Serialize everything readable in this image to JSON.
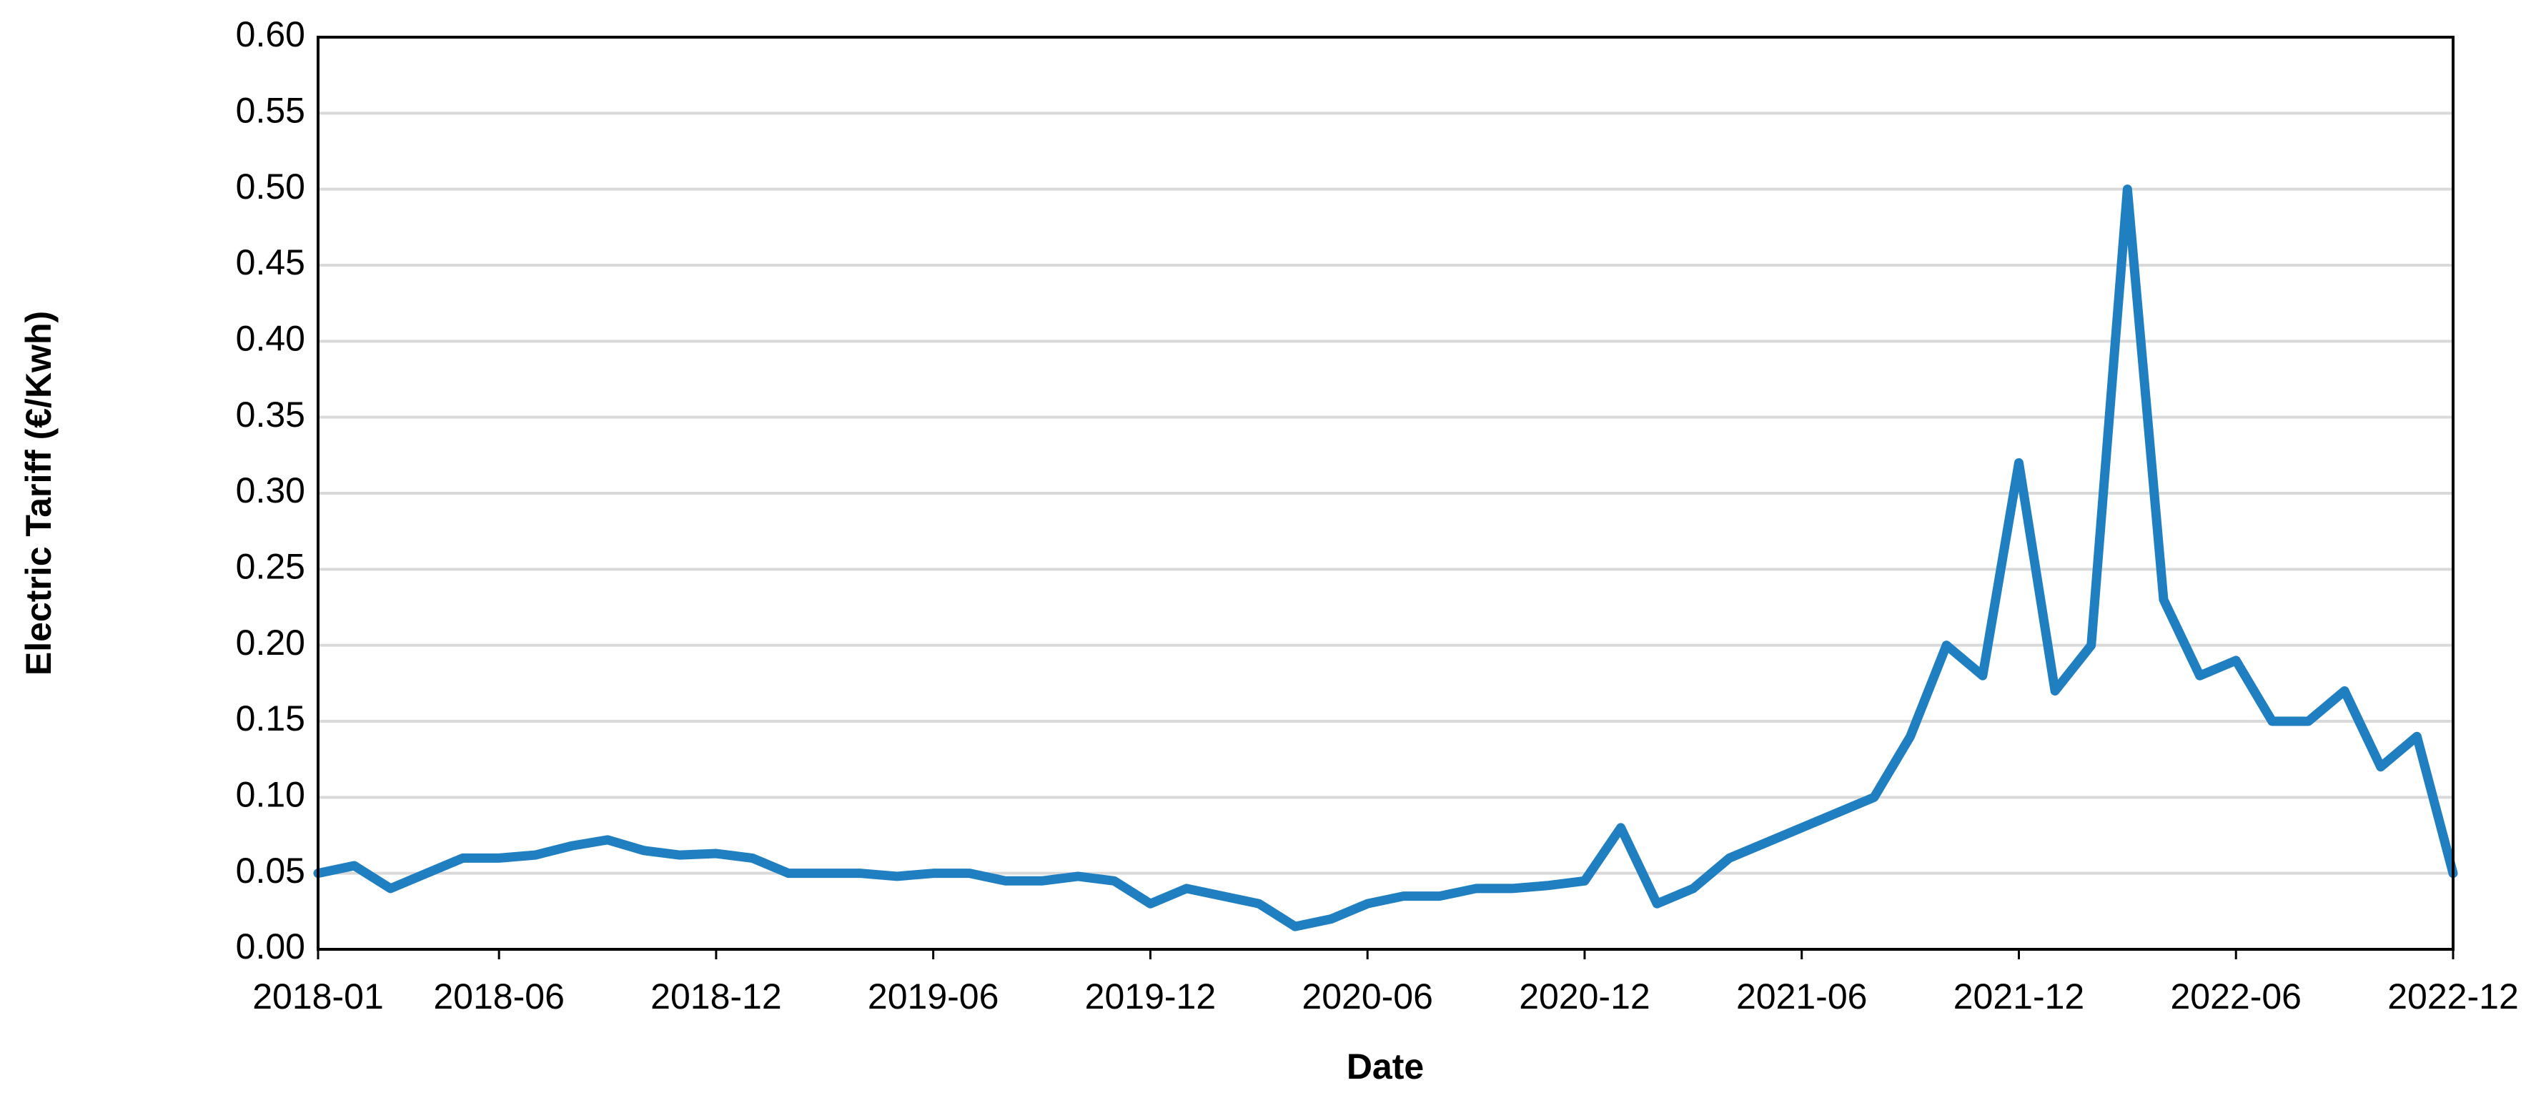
{
  "chart_data": {
    "type": "line",
    "x_label": "Date",
    "y_label": "Electric Tariff (€/Kwh)",
    "x": [
      "2018-01",
      "2018-02",
      "2018-03",
      "2018-04",
      "2018-05",
      "2018-06",
      "2018-07",
      "2018-08",
      "2018-09",
      "2018-10",
      "2018-11",
      "2018-12",
      "2019-01",
      "2019-02",
      "2019-03",
      "2019-04",
      "2019-05",
      "2019-06",
      "2019-07",
      "2019-08",
      "2019-09",
      "2019-10",
      "2019-11",
      "2019-12",
      "2020-01",
      "2020-02",
      "2020-03",
      "2020-04",
      "2020-05",
      "2020-06",
      "2020-07",
      "2020-08",
      "2020-09",
      "2020-10",
      "2020-11",
      "2020-12",
      "2021-01",
      "2021-02",
      "2021-03",
      "2021-04",
      "2021-05",
      "2021-06",
      "2021-07",
      "2021-08",
      "2021-09",
      "2021-10",
      "2021-11",
      "2021-12",
      "2022-01",
      "2022-02",
      "2022-03",
      "2022-04",
      "2022-05",
      "2022-06",
      "2022-07",
      "2022-08",
      "2022-09",
      "2022-10",
      "2022-11",
      "2022-12"
    ],
    "series": [
      {
        "color": "#1f7fc1",
        "values": [
          0.05,
          0.055,
          0.04,
          0.05,
          0.06,
          0.06,
          0.062,
          0.068,
          0.072,
          0.065,
          0.062,
          0.063,
          0.06,
          0.05,
          0.05,
          0.05,
          0.048,
          0.05,
          0.05,
          0.045,
          0.045,
          0.048,
          0.045,
          0.03,
          0.04,
          0.035,
          0.03,
          0.015,
          0.02,
          0.03,
          0.035,
          0.035,
          0.04,
          0.04,
          0.042,
          0.045,
          0.08,
          0.03,
          0.04,
          0.06,
          0.07,
          0.08,
          0.09,
          0.1,
          0.14,
          0.2,
          0.18,
          0.32,
          0.17,
          0.2,
          0.5,
          0.23,
          0.18,
          0.19,
          0.15,
          0.15,
          0.17,
          0.12,
          0.14,
          0.05
        ]
      }
    ],
    "xlim": [
      "2018-01",
      "2022-12"
    ],
    "xticks": [
      "2018-01",
      "2018-06",
      "2018-12",
      "2019-06",
      "2019-12",
      "2020-06",
      "2020-12",
      "2021-06",
      "2021-12",
      "2022-06",
      "2022-12"
    ],
    "ylim": [
      0,
      0.6
    ],
    "yticks": [
      {
        "value": 0,
        "label": "0.00"
      },
      {
        "value": 0.05,
        "label": "0.05"
      },
      {
        "value": 0.1,
        "label": "0.10"
      },
      {
        "value": 0.15,
        "label": "0.15"
      },
      {
        "value": 0.2,
        "label": "0.20"
      },
      {
        "value": 0.25,
        "label": "0.25"
      },
      {
        "value": 0.3,
        "label": "0.30"
      },
      {
        "value": 0.35,
        "label": "0.35"
      },
      {
        "value": 0.4,
        "label": "0.40"
      },
      {
        "value": 0.45,
        "label": "0.45"
      },
      {
        "value": 0.5,
        "label": "0.50"
      },
      {
        "value": 0.55,
        "label": "0.55"
      },
      {
        "value": 0.6,
        "label": "0.60"
      }
    ],
    "grid": true
  }
}
